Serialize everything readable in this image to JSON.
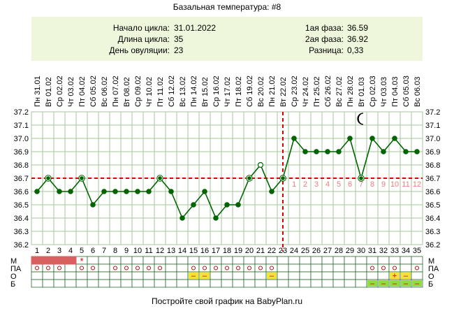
{
  "title": "Базальная температура: #8",
  "info": {
    "left": [
      {
        "label": "Начало цикла:",
        "value": "31.01.2022"
      },
      {
        "label": "Длина цикла:",
        "value": "35"
      },
      {
        "label": "День овуляции:",
        "value": "23"
      }
    ],
    "right": [
      {
        "label": "1ая фаза:",
        "value": "36.59"
      },
      {
        "label": "2ая фаза:",
        "value": "36.92"
      },
      {
        "label": "Разница:",
        "value": "0,33"
      }
    ]
  },
  "footer": "Постройте свой график на BabyPlan.ru",
  "chart_data": {
    "type": "line",
    "x": [
      1,
      2,
      3,
      4,
      5,
      6,
      7,
      8,
      9,
      10,
      11,
      12,
      13,
      14,
      15,
      16,
      17,
      18,
      19,
      20,
      21,
      22,
      23,
      24,
      25,
      26,
      27,
      28,
      29,
      30,
      31,
      32,
      33,
      34,
      35
    ],
    "weekdays": [
      "Пн",
      "Вт",
      "Ср",
      "Чт",
      "Пт",
      "Сб",
      "Вс",
      "Пн",
      "Вт",
      "Ср",
      "Чт",
      "Пт",
      "Сб",
      "Вс",
      "Пн",
      "Вт",
      "Ср",
      "Чт",
      "Пт",
      "Сб",
      "Вс",
      "Пн",
      "Вт",
      "Ср",
      "Чт",
      "Пт",
      "Сб",
      "Вс",
      "Пн",
      "Вт",
      "Ср",
      "Чт",
      "Пт",
      "Сб",
      "Вс"
    ],
    "dates": [
      "31.01",
      "01.02",
      "02.02",
      "03.02",
      "04.02",
      "05.02",
      "06.02",
      "07.02",
      "08.02",
      "09.02",
      "10.02",
      "11.02",
      "12.02",
      "13.02",
      "14.02",
      "15.02",
      "16.02",
      "17.02",
      "18.02",
      "19.02",
      "20.02",
      "21.02",
      "22.02",
      "23.02",
      "24.02",
      "25.02",
      "26.02",
      "27.02",
      "28.02",
      "01.03",
      "02.03",
      "03.03",
      "04.03",
      "05.03",
      "06.03"
    ],
    "series": [
      {
        "values": [
          36.6,
          36.7,
          36.6,
          36.6,
          36.7,
          36.5,
          36.6,
          36.6,
          36.6,
          36.6,
          36.6,
          36.7,
          36.6,
          36.4,
          36.5,
          36.6,
          36.4,
          36.5,
          36.5,
          36.7,
          36.8,
          36.6,
          36.7,
          37.0,
          36.9,
          36.9,
          36.9,
          36.9,
          37.0,
          36.7,
          37.0,
          36.9,
          37.0,
          36.9,
          36.9
        ],
        "markers": [
          "filled",
          "ring",
          "filled",
          "filled",
          "ring",
          "filled",
          "filled",
          "filled",
          "filled",
          "filled",
          "filled",
          "ring",
          "filled",
          "filled",
          "filled",
          "filled",
          "filled",
          "filled",
          "filled",
          "ring",
          "open",
          "filled",
          "ring",
          "filled",
          "filled",
          "filled",
          "filled",
          "filled",
          "filled",
          "ring",
          "filled",
          "filled",
          "filled",
          "filled",
          "filled"
        ]
      }
    ],
    "y_ticks": [
      "36.2",
      "36.3",
      "36.4",
      "36.5",
      "36.6",
      "36.7",
      "36.8",
      "36.9",
      "37.0",
      "37.1",
      "37.2"
    ],
    "ylim": [
      36.2,
      37.2
    ],
    "coverline": 36.7,
    "ovulation_day": 23,
    "phase_day_labels": [
      "1",
      "2",
      "3",
      "4",
      "5",
      "6",
      "7",
      "8",
      "9",
      "10",
      "11",
      "12"
    ],
    "phase_day_start": 24,
    "moon_day": 30,
    "moon_icon": "crescent-moon-icon",
    "row_labels": [
      "М",
      "ПА",
      "О",
      "Б"
    ],
    "right_row_labels": [
      "М",
      "ПА",
      "О",
      "Б"
    ],
    "rows": {
      "M": {
        "days": [
          1,
          2,
          3,
          4
        ],
        "color": "#d96060",
        "star_day": 5,
        "star": "*"
      },
      "PA": {
        "days": [
          1,
          2,
          3,
          5,
          6,
          8,
          9,
          10,
          11,
          12,
          15,
          16,
          17,
          18,
          19,
          20,
          21,
          22,
          31,
          32,
          33,
          35
        ],
        "symbol": "o"
      },
      "O": {
        "marks": [
          {
            "day": 15,
            "text": "–"
          },
          {
            "day": 16,
            "text": "–"
          },
          {
            "day": 22,
            "text": "–"
          },
          {
            "day": 33,
            "text": "+"
          },
          {
            "day": 34,
            "text": "–"
          }
        ],
        "color": "#f2e33a"
      },
      "B": {
        "marks": [
          {
            "day": 31,
            "text": "–"
          },
          {
            "day": 32,
            "text": "–"
          },
          {
            "day": 33,
            "text": "–"
          },
          {
            "day": 34,
            "text": "–"
          },
          {
            "day": 35,
            "text": "–"
          }
        ],
        "color": "#90dd40"
      }
    },
    "colors": {
      "line": "#006400",
      "dashed": "#dd0000",
      "grid": "#a6c49b",
      "phase_label": "#e88080",
      "accent_mark": "#cc0000"
    }
  }
}
